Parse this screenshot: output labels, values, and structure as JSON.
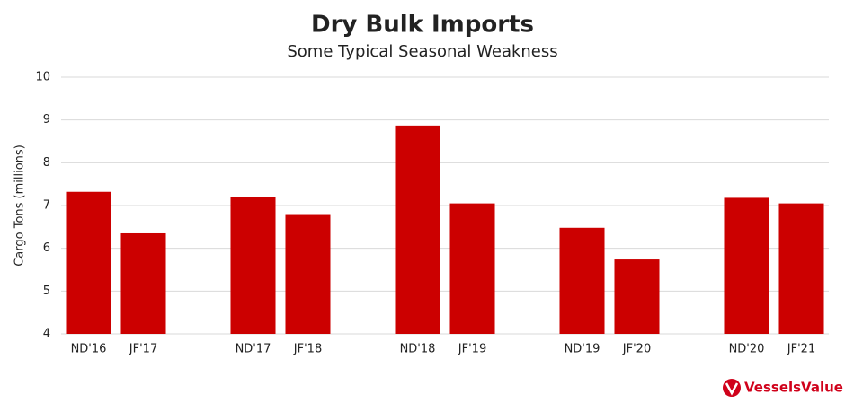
{
  "chart_data": {
    "type": "bar",
    "title": "Dry Bulk Imports",
    "subtitle": "Some Typical Seasonal Weakness",
    "y_label": "Cargo Tons (millions)",
    "categories": [
      "ND'16",
      "JF'17",
      null,
      "ND'17",
      "JF'18",
      null,
      "ND'18",
      "JF'19",
      null,
      "ND'19",
      "JF'20",
      null,
      "ND'20",
      "JF'21"
    ],
    "values": [
      7.32,
      6.35,
      null,
      7.19,
      6.8,
      null,
      8.87,
      7.05,
      null,
      6.48,
      5.74,
      null,
      7.18,
      7.05
    ],
    "color": "#cc0000",
    "ylim": [
      4,
      10
    ],
    "yticks": [
      4,
      5,
      6,
      7,
      8,
      9,
      10
    ],
    "grid": true
  },
  "logo": "VesselsValue"
}
